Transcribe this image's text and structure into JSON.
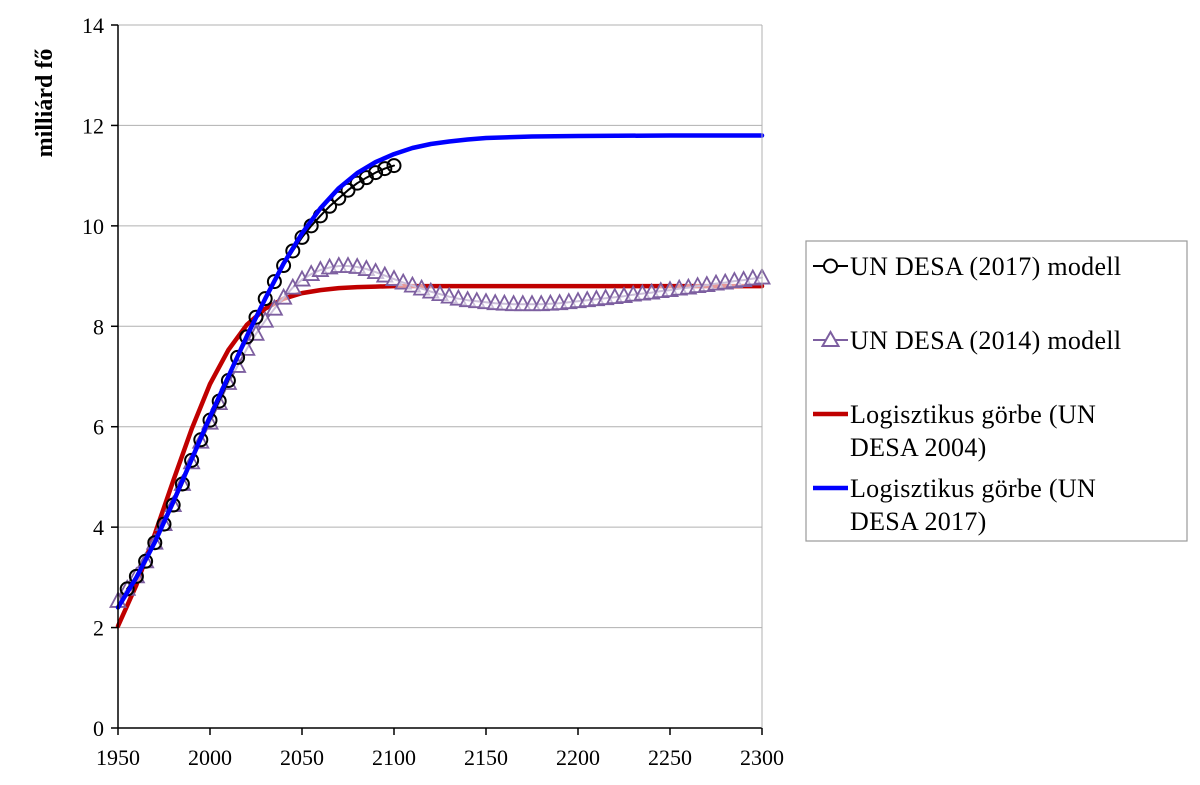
{
  "chart_data": {
    "type": "line",
    "title": "",
    "xlabel": "",
    "ylabel": "milliárd fő",
    "xlim": [
      1950,
      2300
    ],
    "ylim": [
      0,
      14
    ],
    "x_ticks": [
      "1950",
      "2000",
      "2050",
      "2100",
      "2150",
      "2200",
      "2250",
      "2300"
    ],
    "y_ticks": [
      "0",
      "2",
      "4",
      "6",
      "8",
      "10",
      "12",
      "14"
    ],
    "grid": "horizontal",
    "legend_position": "right",
    "series": [
      {
        "name": "UN DESA (2017) modell",
        "style": "line-circle-markers",
        "color": "#000000",
        "x": [
          1955,
          1960,
          1965,
          1970,
          1975,
          1980,
          1985,
          1990,
          1995,
          2000,
          2005,
          2010,
          2015,
          2020,
          2025,
          2030,
          2035,
          2040,
          2045,
          2050,
          2055,
          2060,
          2065,
          2070,
          2075,
          2080,
          2085,
          2090,
          2095,
          2100
        ],
        "y": [
          2.77,
          3.02,
          3.32,
          3.69,
          4.06,
          4.44,
          4.86,
          5.33,
          5.74,
          6.13,
          6.51,
          6.92,
          7.38,
          7.79,
          8.18,
          8.55,
          8.89,
          9.21,
          9.5,
          9.77,
          10.0,
          10.2,
          10.39,
          10.55,
          10.71,
          10.85,
          10.96,
          11.06,
          11.14,
          11.2
        ]
      },
      {
        "name": "UN DESA (2014) modell",
        "style": "line-triangle-markers",
        "color": "#7d5fa0",
        "x": [
          1950,
          1955,
          1960,
          1965,
          1970,
          1975,
          1980,
          1985,
          1990,
          1995,
          2000,
          2005,
          2010,
          2015,
          2020,
          2025,
          2030,
          2035,
          2040,
          2045,
          2050,
          2055,
          2060,
          2065,
          2070,
          2075,
          2080,
          2085,
          2090,
          2095,
          2100,
          2105,
          2110,
          2115,
          2120,
          2125,
          2130,
          2135,
          2140,
          2145,
          2150,
          2155,
          2160,
          2165,
          2170,
          2175,
          2180,
          2185,
          2190,
          2195,
          2200,
          2205,
          2210,
          2215,
          2220,
          2225,
          2230,
          2235,
          2240,
          2245,
          2250,
          2255,
          2260,
          2265,
          2270,
          2275,
          2280,
          2285,
          2290,
          2295,
          2300
        ],
        "y": [
          2.53,
          2.77,
          3.02,
          3.32,
          3.69,
          4.06,
          4.44,
          4.86,
          5.29,
          5.7,
          6.08,
          6.47,
          6.87,
          7.21,
          7.55,
          7.85,
          8.11,
          8.35,
          8.57,
          8.77,
          8.93,
          9.04,
          9.12,
          9.17,
          9.2,
          9.2,
          9.18,
          9.14,
          9.08,
          9.01,
          8.94,
          8.87,
          8.81,
          8.75,
          8.69,
          8.64,
          8.59,
          8.55,
          8.52,
          8.5,
          8.48,
          8.46,
          8.45,
          8.44,
          8.44,
          8.44,
          8.44,
          8.45,
          8.46,
          8.48,
          8.5,
          8.52,
          8.54,
          8.56,
          8.58,
          8.6,
          8.63,
          8.65,
          8.67,
          8.7,
          8.72,
          8.75,
          8.77,
          8.8,
          8.82,
          8.85,
          8.87,
          8.9,
          8.92,
          8.95,
          8.97
        ]
      },
      {
        "name": "Logisztikus görbe (UN DESA 2004)",
        "style": "line",
        "color": "#c00000",
        "x": [
          1950,
          1960,
          1970,
          1980,
          1990,
          2000,
          2010,
          2020,
          2030,
          2040,
          2050,
          2060,
          2070,
          2080,
          2090,
          2100,
          2120,
          2150,
          2200,
          2250,
          2300
        ],
        "y": [
          2.03,
          2.85,
          3.86,
          4.92,
          5.95,
          6.85,
          7.53,
          8.03,
          8.35,
          8.55,
          8.66,
          8.72,
          8.76,
          8.78,
          8.79,
          8.8,
          8.8,
          8.8,
          8.8,
          8.8,
          8.8
        ]
      },
      {
        "name": "Logisztikus görbe (UN DESA 2017)",
        "style": "line",
        "color": "#0000ff",
        "x": [
          1950,
          1960,
          1970,
          1980,
          1990,
          2000,
          2010,
          2020,
          2030,
          2040,
          2050,
          2060,
          2070,
          2080,
          2090,
          2100,
          2110,
          2120,
          2130,
          2140,
          2150,
          2175,
          2200,
          2250,
          2300
        ],
        "y": [
          2.4,
          3.0,
          3.7,
          4.5,
          5.35,
          6.2,
          7.0,
          7.8,
          8.55,
          9.25,
          9.85,
          10.35,
          10.75,
          11.05,
          11.27,
          11.43,
          11.55,
          11.63,
          11.68,
          11.72,
          11.75,
          11.78,
          11.79,
          11.8,
          11.8
        ]
      }
    ]
  }
}
